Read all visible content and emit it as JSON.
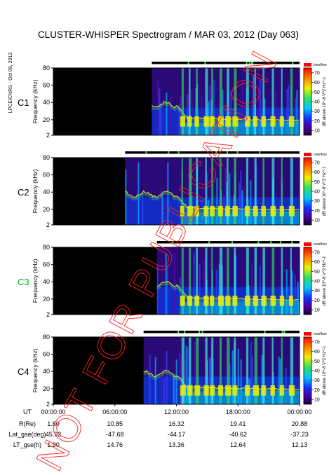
{
  "chart_data": {
    "type": "heatmap",
    "title": "CLUSTER-WHISPER Spectrogram / MAR 03, 2012 (Day 063)",
    "side_label": "LPCE/CNRS - Oct 08, 2012",
    "watermark": "NOT FOR PUBLICATION",
    "ylabel": "Frequency (kHz)",
    "yticks": [
      2,
      20,
      40,
      60,
      80
    ],
    "ylim": [
      2,
      80
    ],
    "colorbar": {
      "label": "dB above 10^-8 V^2 Hz^-1",
      "ticks": [
        10,
        20,
        30,
        40,
        50,
        60,
        70
      ],
      "range": [
        5,
        75
      ],
      "top_label": "overflow"
    },
    "panels": [
      {
        "name": "C1",
        "label_color": "#000000",
        "data_start_hours": 9.6
      },
      {
        "name": "C2",
        "label_color": "#000000",
        "data_start_hours": 7.0
      },
      {
        "name": "C3",
        "label_color": "#00b000",
        "data_start_hours": 10.1
      },
      {
        "name": "C4",
        "label_color": "#000000",
        "data_start_hours": 8.8
      }
    ],
    "xaxis": {
      "label": "UT",
      "xlim_hours": [
        0,
        24
      ],
      "ticks": [
        "00:00:00",
        "06:00:00",
        "12:00:00",
        "18:00:00",
        "00:00:00"
      ]
    },
    "ephemeris": [
      {
        "label": "R(Re)",
        "values": [
          "1.80",
          "10.85",
          "16.32",
          "19.41",
          "20.88"
        ]
      },
      {
        "label": "Lat_gse(deg)",
        "values": [
          "45.92",
          "-47.68",
          "-44.17",
          "-40.62",
          "-37.23"
        ]
      },
      {
        "label": "LT_gse(h)",
        "values": [
          "1.90",
          "14.76",
          "13.36",
          "12.64",
          "12.13"
        ]
      }
    ]
  }
}
